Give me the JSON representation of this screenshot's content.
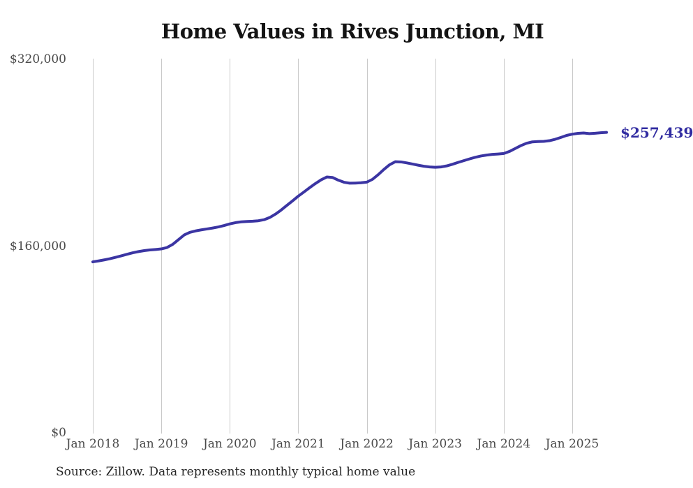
{
  "chart": {
    "title": "Home Values in Rives Junction, MI",
    "latest_value_label": "$257,439",
    "source_note": "Source: Zillow. Data represents monthly typical home value"
  },
  "chart_data": {
    "type": "line",
    "title": "Home Values in Rives Junction, MI",
    "xlabel": "",
    "ylabel": "",
    "ylim": [
      0,
      320000
    ],
    "grid": "vertical-only",
    "legend": "none",
    "y_ticks": [
      {
        "label": "$0",
        "value": 0
      },
      {
        "label": "$160,000",
        "value": 160000
      },
      {
        "label": "$320,000",
        "value": 320000
      }
    ],
    "x_ticks": [
      {
        "label": "Jan 2018",
        "month": "2018-01"
      },
      {
        "label": "Jan 2019",
        "month": "2019-01"
      },
      {
        "label": "Jan 2020",
        "month": "2020-01"
      },
      {
        "label": "Jan 2021",
        "month": "2021-01"
      },
      {
        "label": "Jan 2022",
        "month": "2022-01"
      },
      {
        "label": "Jan 2023",
        "month": "2023-01"
      },
      {
        "label": "Jan 2024",
        "month": "2024-01"
      },
      {
        "label": "Jan 2025",
        "month": "2025-01"
      }
    ],
    "series": [
      {
        "name": "Monthly typical home value",
        "interval": "monthly",
        "start": "2018-01",
        "end": "2025-07",
        "values": [
          146500,
          147300,
          148200,
          149200,
          150400,
          151700,
          153000,
          154300,
          155300,
          156100,
          156700,
          157100,
          157600,
          158800,
          161500,
          165500,
          169500,
          171800,
          173000,
          173900,
          174700,
          175500,
          176400,
          177600,
          179000,
          180100,
          180800,
          181100,
          181300,
          181700,
          182600,
          184500,
          187400,
          190900,
          194900,
          198800,
          202800,
          206400,
          210100,
          213600,
          216800,
          219200,
          218800,
          216500,
          214700,
          213900,
          214000,
          214300,
          214800,
          217200,
          221200,
          225700,
          229700,
          232300,
          232100,
          231300,
          230300,
          229300,
          228400,
          227800,
          227500,
          227800,
          228700,
          230100,
          231700,
          233200,
          234700,
          236100,
          237200,
          238000,
          238600,
          238900,
          239300,
          241100,
          243600,
          246100,
          248100,
          249300,
          249600,
          249700,
          250300,
          251500,
          253100,
          254800,
          255900,
          256600,
          256900,
          256400,
          256700,
          257100,
          257439
        ]
      }
    ],
    "latest_value": 257439,
    "latest_value_label": "$257,439",
    "annotations": [
      {
        "text": "$257,439",
        "position": "end-of-line"
      }
    ],
    "colors": {
      "line": "#3b35a3",
      "latest_label": "#312ca1",
      "gridline": "#c9c9c9",
      "axis_text": "#4a4a4a",
      "title": "#141414",
      "source_text": "#262626"
    }
  }
}
